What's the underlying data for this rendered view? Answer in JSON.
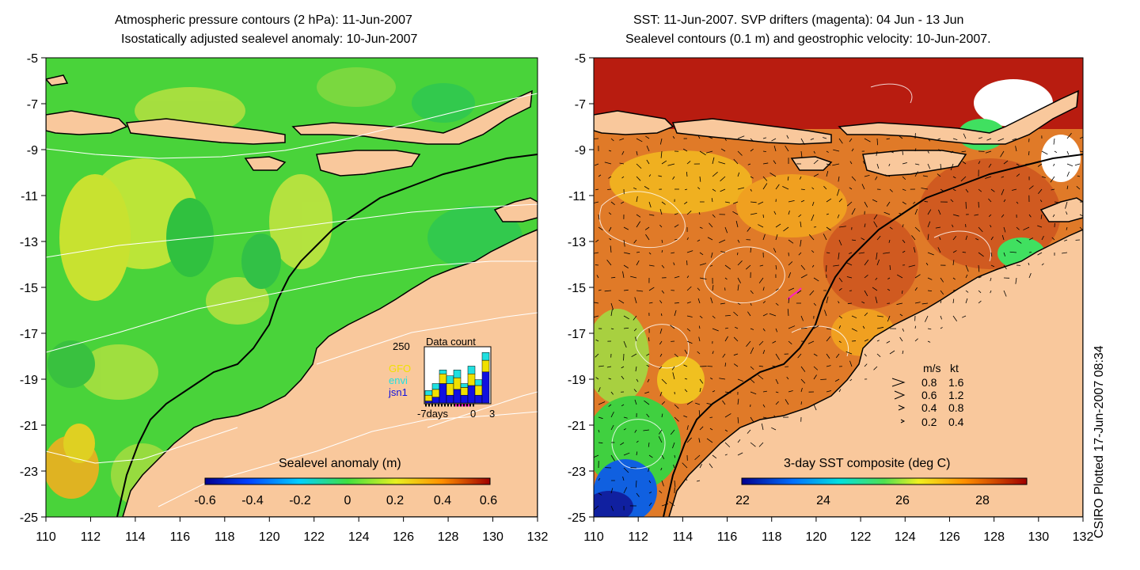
{
  "left_panel": {
    "title_line1": "Atmospheric pressure contours (2 hPa): 11-Jun-2007",
    "title_line2": "Isostatically adjusted sealevel anomaly: 10-Jun-2007",
    "colorbar_label": "Sealevel anomaly (m)",
    "colorbar_ticks": [
      "-0.6",
      "-0.4",
      "-0.2",
      "0",
      "0.2",
      "0.4",
      "0.6"
    ],
    "data_count": {
      "title": "Data count",
      "y_max_label": "250",
      "x_labels": [
        "-7days",
        "0",
        "3"
      ],
      "satellites": [
        {
          "name": "GFO",
          "color": "#f0e000"
        },
        {
          "name": "envi",
          "color": "#20e0e0"
        },
        {
          "name": "jsn1",
          "color": "#1010e0"
        }
      ]
    }
  },
  "right_panel": {
    "title_line1": "SST: 11-Jun-2007. SVP drifters (magenta): 04 Jun - 13 Jun",
    "title_line2": "Sealevel contours (0.1 m) and geostrophic velocity: 10-Jun-2007.",
    "colorbar_label": "3-day SST composite (deg C)",
    "colorbar_ticks": [
      "22",
      "24",
      "26",
      "28"
    ],
    "velocity_legend": {
      "header_ms": "m/s",
      "header_kt": "kt",
      "rows": [
        {
          "ms": "0.8",
          "kt": "1.6"
        },
        {
          "ms": "0.6",
          "kt": "1.2"
        },
        {
          "ms": "0.4",
          "kt": "0.8"
        },
        {
          "ms": "0.2",
          "kt": "0.4"
        }
      ]
    }
  },
  "axes": {
    "y_ticks": [
      "-5",
      "-7",
      "-9",
      "-11",
      "-13",
      "-15",
      "-17",
      "-19",
      "-21",
      "-23",
      "-25"
    ],
    "x_ticks": [
      "110",
      "112",
      "114",
      "116",
      "118",
      "120",
      "122",
      "124",
      "126",
      "128",
      "130",
      "132"
    ]
  },
  "credit": "CSIRO Plotted 17-Jun-2007 08:34",
  "colors": {
    "land": "#f9c89c",
    "sla_base": "#49d33a",
    "sst_base": "#e07a28",
    "contour": "#ffffff"
  }
}
